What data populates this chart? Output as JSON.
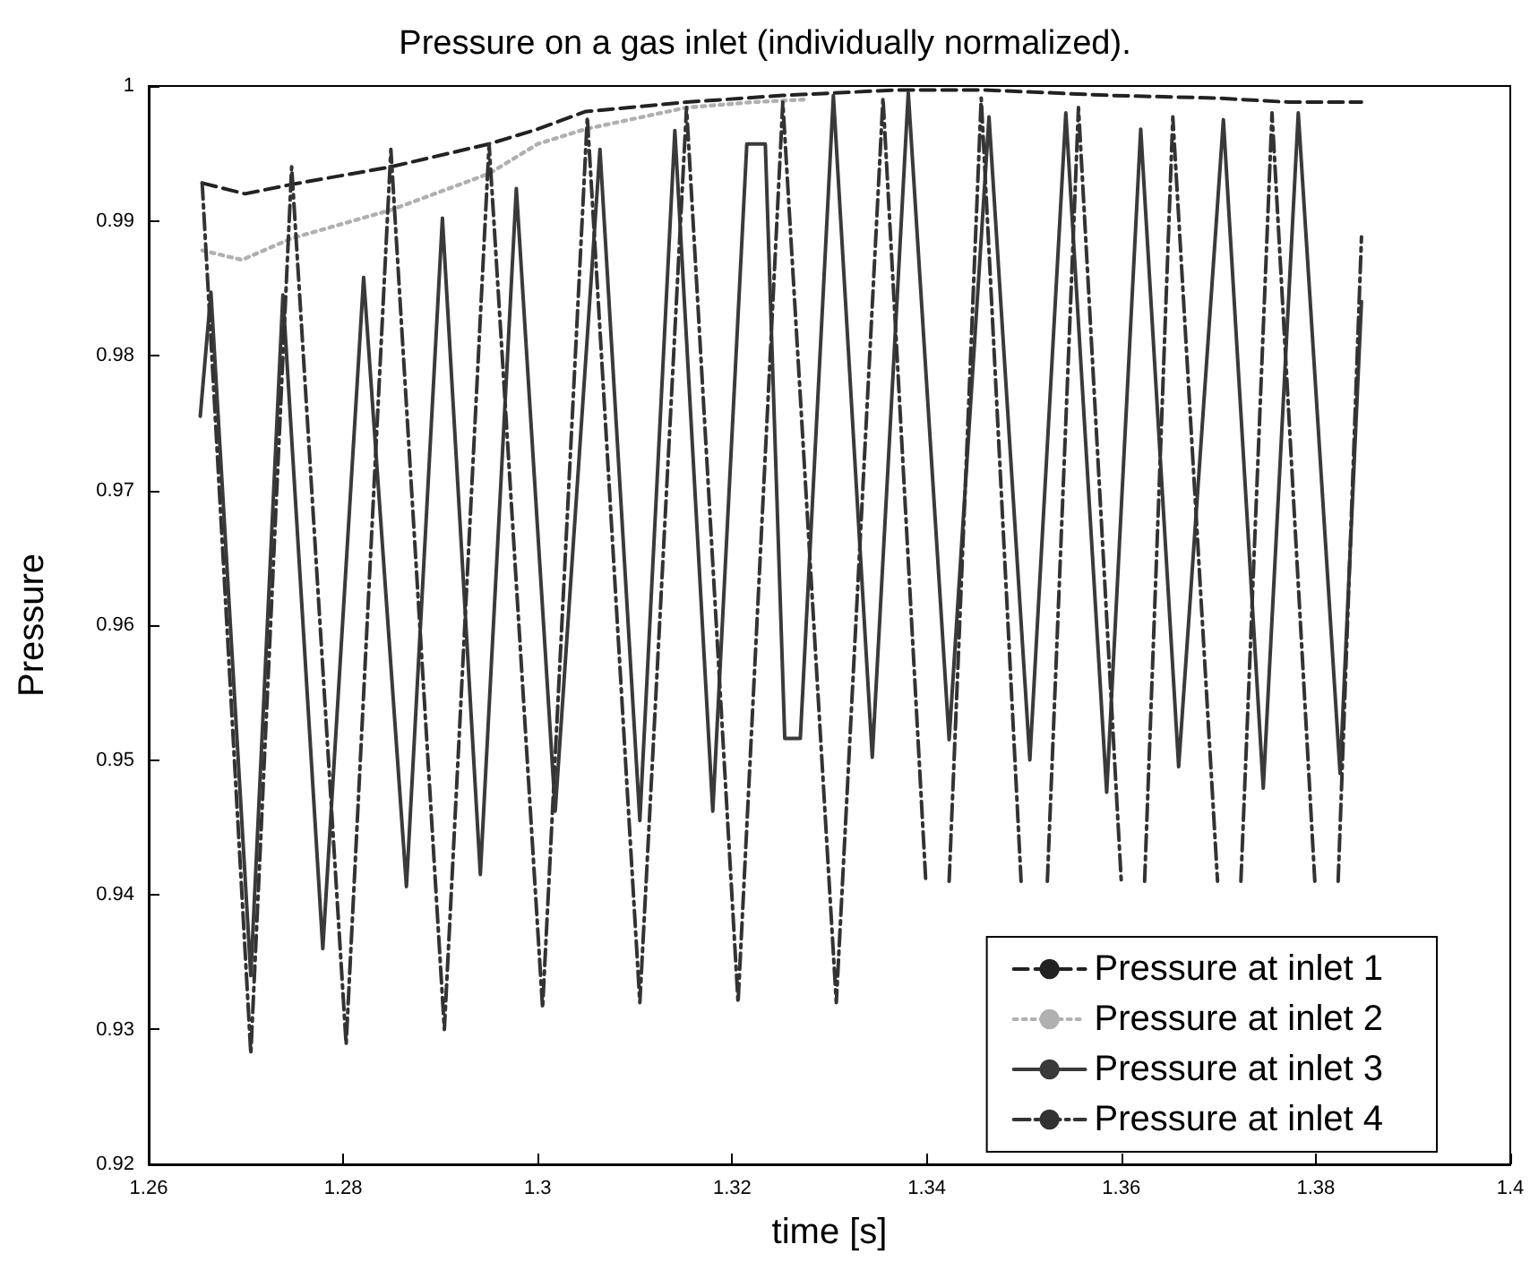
{
  "chart_data": {
    "type": "line",
    "title": "Pressure on a gas inlet (individually normalized).",
    "xlabel": "time [s]",
    "ylabel": "Pressure",
    "xlim": [
      1.26,
      1.4
    ],
    "xticks": [
      {
        "value": 1.26,
        "label": "1.26"
      },
      {
        "value": 1.28,
        "label": "1.28"
      },
      {
        "value": 1.3,
        "label": "1.3"
      },
      {
        "value": 1.32,
        "label": "1.32"
      },
      {
        "value": 1.34,
        "label": "1.34"
      },
      {
        "value": 1.36,
        "label": "1.36"
      },
      {
        "value": 1.38,
        "label": "1.38"
      },
      {
        "value": 1.4,
        "label": "1.4"
      }
    ],
    "ylim": [
      0.92,
      1
    ],
    "yticks": [
      0.92,
      0.93,
      0.94,
      0.95,
      0.96,
      0.97,
      0.98,
      0.99,
      1
    ],
    "grid": false,
    "legend": "bottom right",
    "marker": "none",
    "series": [
      {
        "name": "Pressure at inlet 1",
        "color": "#222222",
        "line_style": "dashed",
        "x": [
          1.2655,
          1.2699,
          1.2747,
          1.2849,
          1.295,
          1.3,
          1.3049,
          1.3153,
          1.3252,
          1.3368,
          1.346,
          1.3589,
          1.3699,
          1.3773,
          1.3847
        ],
        "values": [
          0.9928,
          0.992,
          0.9927,
          0.994,
          0.9957,
          0.9968,
          0.9981,
          0.9988,
          0.9993,
          0.9997,
          0.9997,
          0.9993,
          0.9991,
          0.9988,
          0.9988
        ]
      },
      {
        "name": "Pressure at inlet 2",
        "color": "#b0b0b0",
        "line_style": "dotted",
        "x": [
          1.2655,
          1.2696,
          1.2747,
          1.2849,
          1.295,
          1.3,
          1.3049,
          1.3153,
          1.3221,
          1.3276
        ],
        "values": [
          0.9878,
          0.9871,
          0.9887,
          0.9908,
          0.9935,
          0.9957,
          0.9968,
          0.9984,
          0.9988,
          0.999
        ]
      },
      {
        "name": "Pressure at inlet 3",
        "color": "#3a3a3a",
        "line_style": "solid",
        "x": [
          1.2653,
          1.2664,
          1.2705,
          1.2738,
          1.2779,
          1.2821,
          1.2865,
          1.2902,
          1.2941,
          1.2978,
          1.3018,
          1.3064,
          1.3105,
          1.3141,
          1.318,
          1.3215,
          1.3234,
          1.3254,
          1.327,
          1.3304,
          1.3344,
          1.3381,
          1.3423,
          1.3464,
          1.3506,
          1.3543,
          1.3585,
          1.362,
          1.3659,
          1.3705,
          1.3746,
          1.3782,
          1.3825,
          1.3847
        ],
        "values": [
          0.9755,
          0.9847,
          0.934,
          0.9845,
          0.936,
          0.9858,
          0.9406,
          0.9902,
          0.9415,
          0.9924,
          0.9462,
          0.9953,
          0.9455,
          0.9967,
          0.9462,
          0.9957,
          0.9957,
          0.9516,
          0.9516,
          0.9993,
          0.9502,
          0.9995,
          0.9515,
          0.9977,
          0.95,
          0.998,
          0.9476,
          0.9968,
          0.9495,
          0.9975,
          0.9479,
          0.998,
          0.949,
          0.984
        ]
      },
      {
        "name": "Pressure at inlet 4",
        "color": "#333333",
        "line_style": "dashdot",
        "x": [
          1.2655,
          1.2705,
          1.2747,
          1.2803,
          1.2849,
          1.2904,
          1.295,
          1.3005,
          1.3051,
          1.3105,
          1.3153,
          1.3206,
          1.3252,
          1.3307,
          1.3355,
          1.3399,
          1.3411,
          1.3423,
          1.3456,
          1.3497,
          1.351,
          1.3524,
          1.3556,
          1.36,
          1.3612,
          1.3624,
          1.3653,
          1.3699,
          1.3711,
          1.3723,
          1.3755,
          1.3799,
          1.3811,
          1.3823,
          1.3847
        ],
        "values": [
          0.9928,
          0.9282,
          0.994,
          0.9289,
          0.9953,
          0.93,
          0.9957,
          0.9316,
          0.9977,
          0.932,
          0.9984,
          0.932,
          0.9988,
          0.932,
          0.9991,
          0.941,
          null,
          0.941,
          0.9991,
          0.941,
          null,
          0.941,
          0.9984,
          0.941,
          null,
          0.941,
          0.9977,
          0.941,
          null,
          0.941,
          0.998,
          0.941,
          null,
          0.941,
          0.9888
        ]
      }
    ]
  }
}
